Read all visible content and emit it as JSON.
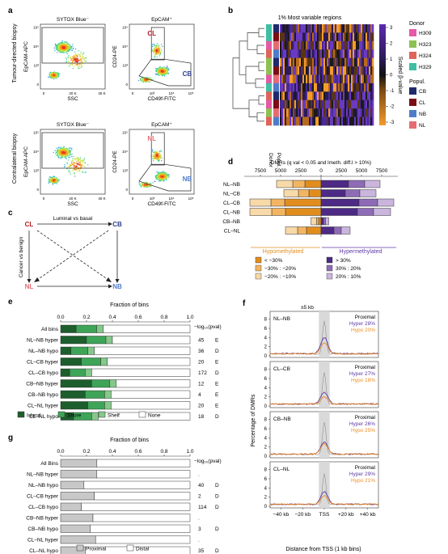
{
  "panel_letters": [
    "a",
    "b",
    "c",
    "d",
    "e",
    "f",
    "g"
  ],
  "panel_a": {
    "row_labels": [
      "Tumour-directed biopsy",
      "Contralateral biopsy"
    ],
    "plots": [
      {
        "title": "SYTOX Blue⁻",
        "xlabel": "SSC",
        "ylabel": "EpCAM-APC",
        "xticks": [
          "0",
          "20 K",
          "40 K"
        ],
        "yticks": [
          "0",
          "10³",
          "10⁴",
          "10⁵"
        ],
        "gate_labels": []
      },
      {
        "title": "EpCAM⁺",
        "xlabel": "CD49f-FITC",
        "ylabel": "CD24-PE",
        "xticks": [
          "0",
          "10³",
          "10⁴",
          "10⁵"
        ],
        "yticks": [
          "0",
          "10³",
          "10⁴",
          "10⁵"
        ],
        "gate_labels": [
          "CL",
          "CB"
        ]
      },
      {
        "title": "SYTOX Blue⁻",
        "xlabel": "SSC",
        "ylabel": "EpCAM-APC",
        "xticks": [
          "0",
          "20 K",
          "40 K"
        ],
        "yticks": [
          "0",
          "10³",
          "10⁴",
          "10⁵"
        ],
        "gate_labels": []
      },
      {
        "title": "EpCAM⁺",
        "xlabel": "CD49f-FITC",
        "ylabel": "CD24-PE",
        "xticks": [
          "0",
          "10³",
          "10⁴",
          "10⁵"
        ],
        "yticks": [
          "0",
          "10³",
          "10⁴",
          "10⁵"
        ],
        "gate_labels": [
          "NL",
          "NB"
        ]
      }
    ]
  },
  "panel_b": {
    "title": "1% Most variable regions",
    "scale_label": "Scaled β-value",
    "scale_ticks": [
      "3",
      "2",
      "1",
      "0",
      "-1",
      "-2",
      "-3"
    ],
    "donor_title": "Donor",
    "donors": [
      {
        "name": "H309",
        "color": "#e35aa6"
      },
      {
        "name": "H323",
        "color": "#8cc152"
      },
      {
        "name": "H324",
        "color": "#e0635a"
      },
      {
        "name": "H329",
        "color": "#3ebfa3"
      }
    ],
    "popul_title": "Popul.",
    "populations": [
      {
        "name": "CB",
        "color": "#1f2a6b"
      },
      {
        "name": "CL",
        "color": "#7a0e14"
      },
      {
        "name": "NB",
        "color": "#4f7cc9"
      },
      {
        "name": "NL",
        "color": "#e56b73"
      }
    ],
    "col_labels": [
      "Donor",
      "Popul."
    ]
  },
  "panel_c": {
    "nodes": [
      "CL",
      "CB",
      "NL",
      "NB"
    ],
    "top_label": "Luminal vs basal",
    "left_label": "Cancer vs benign",
    "node_colors": {
      "CL": "#b21b22",
      "CB": "#2e3c8c",
      "NL": "#e56b73",
      "NB": "#4f7cc9"
    }
  },
  "panel_d": {
    "title": "DMRs (q val < 0.05 and lmeth. diff.l > 10%)",
    "axis_ticks": [
      "7500",
      "5000",
      "2500",
      "0",
      "2500",
      "5000",
      "7500"
    ],
    "chart_data": {
      "type": "bar",
      "categories": [
        "NL–NB",
        "NL–CB",
        "CL–CB",
        "CL–NB",
        "CB–NB",
        "CL–NL"
      ],
      "series": [
        {
          "name": "< −30%",
          "side": "hypo",
          "values": [
            2000,
            1500,
            4500,
            4400,
            300,
            1800
          ]
        },
        {
          "name": "−30% : −20%",
          "side": "hypo",
          "values": [
            1500,
            1300,
            1700,
            1700,
            250,
            1100
          ]
        },
        {
          "name": "−20% : −10%",
          "side": "hypo",
          "values": [
            2000,
            1800,
            2600,
            2700,
            700,
            1500
          ]
        },
        {
          "name": "> 30%",
          "side": "hyper",
          "values": [
            3400,
            3000,
            4700,
            4500,
            300,
            1600
          ]
        },
        {
          "name": "30% : 20%",
          "side": "hyper",
          "values": [
            2000,
            1800,
            2300,
            2000,
            250,
            900
          ]
        },
        {
          "name": "20% : 10%",
          "side": "hyper",
          "values": [
            1900,
            2000,
            2000,
            2100,
            400,
            1100
          ]
        }
      ],
      "xlim": [
        -9500,
        9500
      ]
    },
    "group_labels": [
      "Hypomethylated",
      "Hypermethylated"
    ],
    "colors": [
      "#e18d1e",
      "#f2b562",
      "#f8d9a8",
      "#4c2a85",
      "#8e6bb7",
      "#c9b5de"
    ]
  },
  "panel_e": {
    "title": "Fraction of bins",
    "xticks": [
      "0.0",
      "0.2",
      "0.4",
      "0.6",
      "0.8",
      "1.0"
    ],
    "pval_label": "−log₁₀(pval)",
    "rows": [
      {
        "label": "All bins",
        "pval": "",
        "sig": ""
      },
      {
        "label": "NL–NB hyper",
        "pval": "45",
        "sig": "E"
      },
      {
        "label": "NL–NB hypo",
        "pval": "36",
        "sig": "D"
      },
      {
        "label": "CL–CB hyper",
        "pval": "20",
        "sig": "E"
      },
      {
        "label": "CL–CB hypo",
        "pval": "172",
        "sig": "D"
      },
      {
        "label": "CB–NB hyper",
        "pval": "12",
        "sig": "E"
      },
      {
        "label": "CB–NB hypo",
        "pval": "4",
        "sig": "E"
      },
      {
        "label": "CL–NL hyper",
        "pval": "20",
        "sig": "E"
      },
      {
        "label": "CL–NL hypo",
        "pval": "18",
        "sig": "D"
      }
    ],
    "chart_data": {
      "type": "bar",
      "stacked": true,
      "categories": [
        "All bins",
        "NL–NB hyper",
        "NL–NB hypo",
        "CL–CB hyper",
        "CL–CB hypo",
        "CB–NB hyper",
        "CB–NB hypo",
        "CL–NL hyper",
        "CL–NL hypo"
      ],
      "series": [
        {
          "name": "Island",
          "values": [
            0.12,
            0.2,
            0.08,
            0.16,
            0.07,
            0.24,
            0.19,
            0.21,
            0.1
          ]
        },
        {
          "name": "Shore",
          "values": [
            0.16,
            0.15,
            0.13,
            0.15,
            0.12,
            0.14,
            0.15,
            0.13,
            0.14
          ]
        },
        {
          "name": "Shelf",
          "values": [
            0.05,
            0.05,
            0.05,
            0.05,
            0.05,
            0.05,
            0.05,
            0.05,
            0.05
          ]
        },
        {
          "name": "None",
          "values": [
            0.67,
            0.6,
            0.74,
            0.64,
            0.76,
            0.57,
            0.61,
            0.61,
            0.71
          ]
        }
      ],
      "xlim": [
        0,
        1
      ]
    },
    "legend": [
      "Island",
      "Shore",
      "Shelf",
      "None"
    ],
    "colors": [
      "#1c5e2c",
      "#3ea457",
      "#85c98a",
      "#ffffff"
    ]
  },
  "panel_g": {
    "title": "Fraction of bins",
    "xticks": [
      "0.0",
      "0.2",
      "0.4",
      "0.6",
      "0.8",
      "1.0"
    ],
    "pval_label": "−log₁₀(pval)",
    "rows": [
      {
        "label": "All Bins",
        "pval": "",
        "sig": ""
      },
      {
        "label": "NL–NB hyper",
        "pval": ".",
        "sig": ""
      },
      {
        "label": "NL–NB hypo",
        "pval": "40",
        "sig": "D"
      },
      {
        "label": "CL–CB hyper",
        "pval": "2",
        "sig": "D"
      },
      {
        "label": "CL–CB hypo",
        "pval": "114",
        "sig": "D"
      },
      {
        "label": "CB–NB hyper",
        "pval": ".",
        "sig": ""
      },
      {
        "label": "CB–NB hypo",
        "pval": "3",
        "sig": "D"
      },
      {
        "label": "CL–NL hyper",
        "pval": ".",
        "sig": ""
      },
      {
        "label": "CL–NL hypo",
        "pval": "35",
        "sig": "D"
      }
    ],
    "chart_data": {
      "type": "bar",
      "stacked": true,
      "categories": [
        "All Bins",
        "NL–NB hyper",
        "NL–NB hypo",
        "CL–CB hyper",
        "CL–CB hypo",
        "CB–NB hyper",
        "CB–NB hypo",
        "CL–NL hyper",
        "CL–NL hypo"
      ],
      "series": [
        {
          "name": "Proximal",
          "values": [
            0.28,
            0.28,
            0.18,
            0.26,
            0.16,
            0.25,
            0.23,
            0.27,
            0.19
          ]
        },
        {
          "name": "Distal",
          "values": [
            0.72,
            0.72,
            0.82,
            0.74,
            0.84,
            0.75,
            0.77,
            0.73,
            0.81
          ]
        }
      ],
      "xlim": [
        0,
        1
      ]
    },
    "legend": [
      "Proximal",
      "Distal"
    ],
    "colors": [
      "#c8c8c8",
      "#ffffff"
    ]
  },
  "panel_f": {
    "ylabel": "Percentage of DMRs",
    "xlabel": "Distance from TSS (1 kb bins)",
    "xticks": [
      "−40 kb",
      "−20 kb",
      "TSS",
      "+20 kb",
      "+40 kb"
    ],
    "yticks": [
      "0",
      "2",
      "4",
      "6",
      "8"
    ],
    "window_label": "±5 kb",
    "chart_data": {
      "type": "line",
      "x_range_kb": [
        -50,
        50
      ],
      "ylim": [
        0,
        9
      ],
      "series_names": [
        "Hyper",
        "Hypo",
        "All"
      ],
      "series_colors": [
        "#5b3aa6",
        "#f08c1e",
        "#909090"
      ],
      "subplots": [
        {
          "label": "NL–NB",
          "proximal": "Proximal",
          "hyper": "Hyper 28%",
          "hypo": "Hypo 20%",
          "peaks": {
            "hyper": 4.0,
            "hypo": 2.9,
            "all": 7.5
          },
          "baselines": {
            "hyper": 0.5,
            "hypo": 0.45,
            "all": 0.4
          }
        },
        {
          "label": "CL–CB",
          "proximal": "Proximal",
          "hyper": "Hyper 27%",
          "hypo": "Hypo 18%",
          "peaks": {
            "hyper": 3.0,
            "hypo": 2.0,
            "all": 7.2
          },
          "baselines": {
            "hyper": 0.45,
            "hypo": 0.45,
            "all": 0.4
          }
        },
        {
          "label": "CB–NB",
          "proximal": "Proximal",
          "hyper": "Hyper 26%",
          "hypo": "Hypo 25%",
          "peaks": {
            "hyper": 3.1,
            "hypo": 2.7,
            "all": 7.5
          },
          "baselines": {
            "hyper": 0.45,
            "hypo": 0.45,
            "all": 0.4
          }
        },
        {
          "label": "CL–NL",
          "proximal": "Proximal",
          "hyper": "Hyper 29%",
          "hypo": "Hypo 21%",
          "peaks": {
            "hyper": 3.2,
            "hypo": 2.3,
            "all": 7.2
          },
          "baselines": {
            "hyper": 0.45,
            "hypo": 0.45,
            "all": 0.4
          }
        }
      ]
    }
  }
}
